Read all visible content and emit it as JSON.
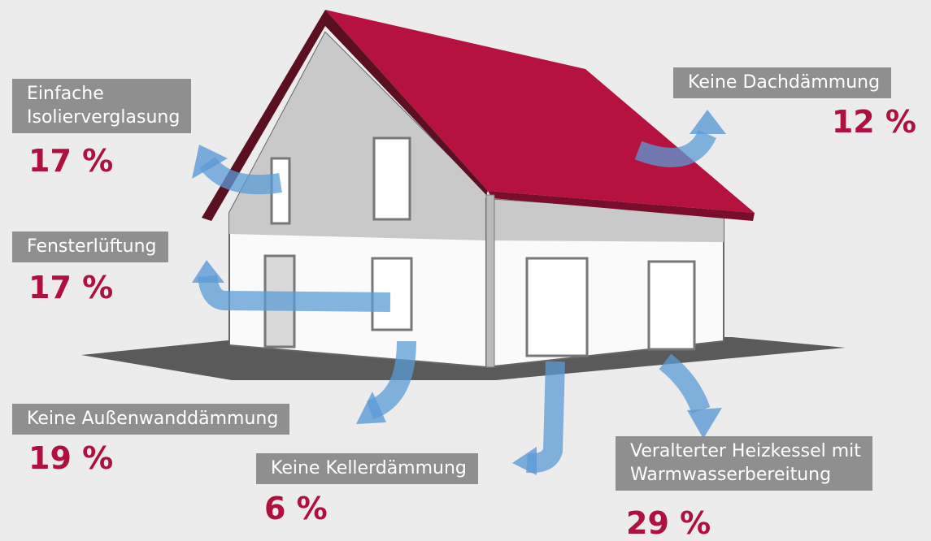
{
  "losses": [
    {
      "label": [
        "Einfache",
        "Isolierverglasung"
      ],
      "value": "17 %"
    },
    {
      "label": [
        "Fensterlüftung"
      ],
      "value": "17 %"
    },
    {
      "label": [
        "Keine Außenwanddämmung"
      ],
      "value": "19 %"
    },
    {
      "label": [
        "Keine Kellerdämmung"
      ],
      "value": "6 %"
    },
    {
      "label": [
        "Keine Dachdämmung"
      ],
      "value": "12 %"
    },
    {
      "label": [
        "Veralterter Heizkessel mit",
        "Warmwasserbereitung"
      ],
      "value": "29 %"
    }
  ]
}
